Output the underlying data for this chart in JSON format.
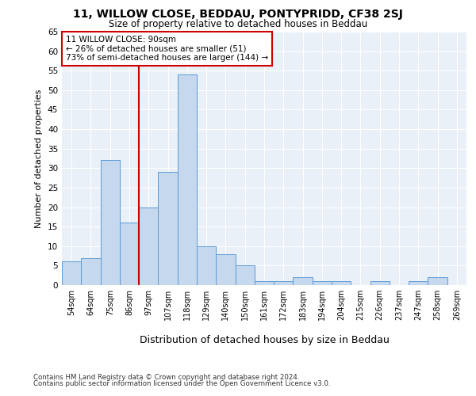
{
  "title1": "11, WILLOW CLOSE, BEDDAU, PONTYPRIDD, CF38 2SJ",
  "title2": "Size of property relative to detached houses in Beddau",
  "xlabel": "Distribution of detached houses by size in Beddau",
  "ylabel": "Number of detached properties",
  "categories": [
    "54sqm",
    "64sqm",
    "75sqm",
    "86sqm",
    "97sqm",
    "107sqm",
    "118sqm",
    "129sqm",
    "140sqm",
    "150sqm",
    "161sqm",
    "172sqm",
    "183sqm",
    "194sqm",
    "204sqm",
    "215sqm",
    "226sqm",
    "237sqm",
    "247sqm",
    "258sqm",
    "269sqm"
  ],
  "values": [
    6,
    7,
    32,
    16,
    20,
    29,
    54,
    10,
    8,
    5,
    1,
    1,
    2,
    1,
    1,
    0,
    1,
    0,
    1,
    2,
    0
  ],
  "bar_color": "#c5d8ed",
  "bar_edge_color": "#5b9bd5",
  "redline_x": 3.5,
  "annotation_text": "11 WILLOW CLOSE: 90sqm\n← 26% of detached houses are smaller (51)\n73% of semi-detached houses are larger (144) →",
  "annotation_box_color": "#ffffff",
  "annotation_box_edge": "#cc0000",
  "footer1": "Contains HM Land Registry data © Crown copyright and database right 2024.",
  "footer2": "Contains public sector information licensed under the Open Government Licence v3.0.",
  "background_color": "#ffffff",
  "plot_bg_color": "#eaf0f8",
  "grid_color": "#ffffff",
  "ylim": [
    0,
    65
  ],
  "yticks": [
    0,
    5,
    10,
    15,
    20,
    25,
    30,
    35,
    40,
    45,
    50,
    55,
    60,
    65
  ]
}
